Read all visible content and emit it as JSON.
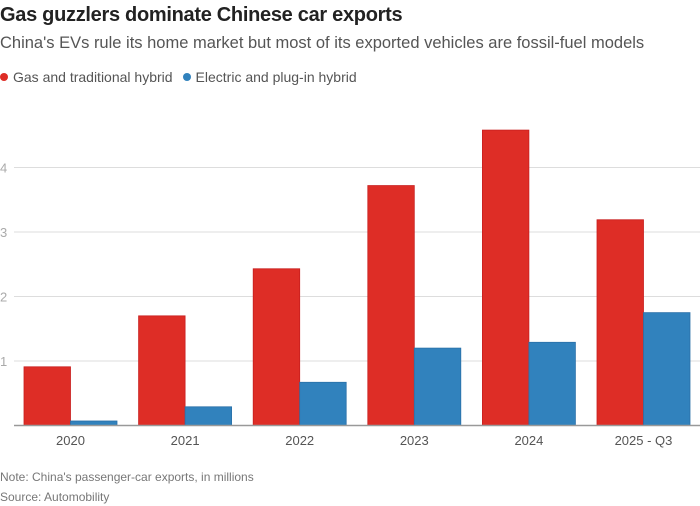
{
  "chart_data": {
    "type": "bar",
    "title": "Gas guzzlers dominate Chinese car exports",
    "subtitle": "China's EVs rule its home market but most of its exported vehicles are fossil-fuel models",
    "xlabel": "",
    "ylabel": "",
    "categories": [
      "2020",
      "2021",
      "2022",
      "2023",
      "2024",
      "2025 - Q3"
    ],
    "series": [
      {
        "name": "Gas and traditional hybrid",
        "color": "#de2d26",
        "values": [
          0.91,
          1.7,
          2.43,
          3.72,
          4.58,
          3.19
        ]
      },
      {
        "name": "Electric and plug-in hybrid",
        "color": "#3182bd",
        "values": [
          0.07,
          0.29,
          0.67,
          1.2,
          1.29,
          1.75
        ]
      }
    ],
    "ylim": [
      0,
      5
    ],
    "yticks": [
      1,
      2,
      3,
      4
    ],
    "ytick_labels": [
      "1",
      "2",
      "3",
      "4"
    ],
    "grid": true,
    "legend_position": "top-left",
    "note": "Note: China's passenger-car exports, in millions",
    "source": "Source: Automobility"
  }
}
